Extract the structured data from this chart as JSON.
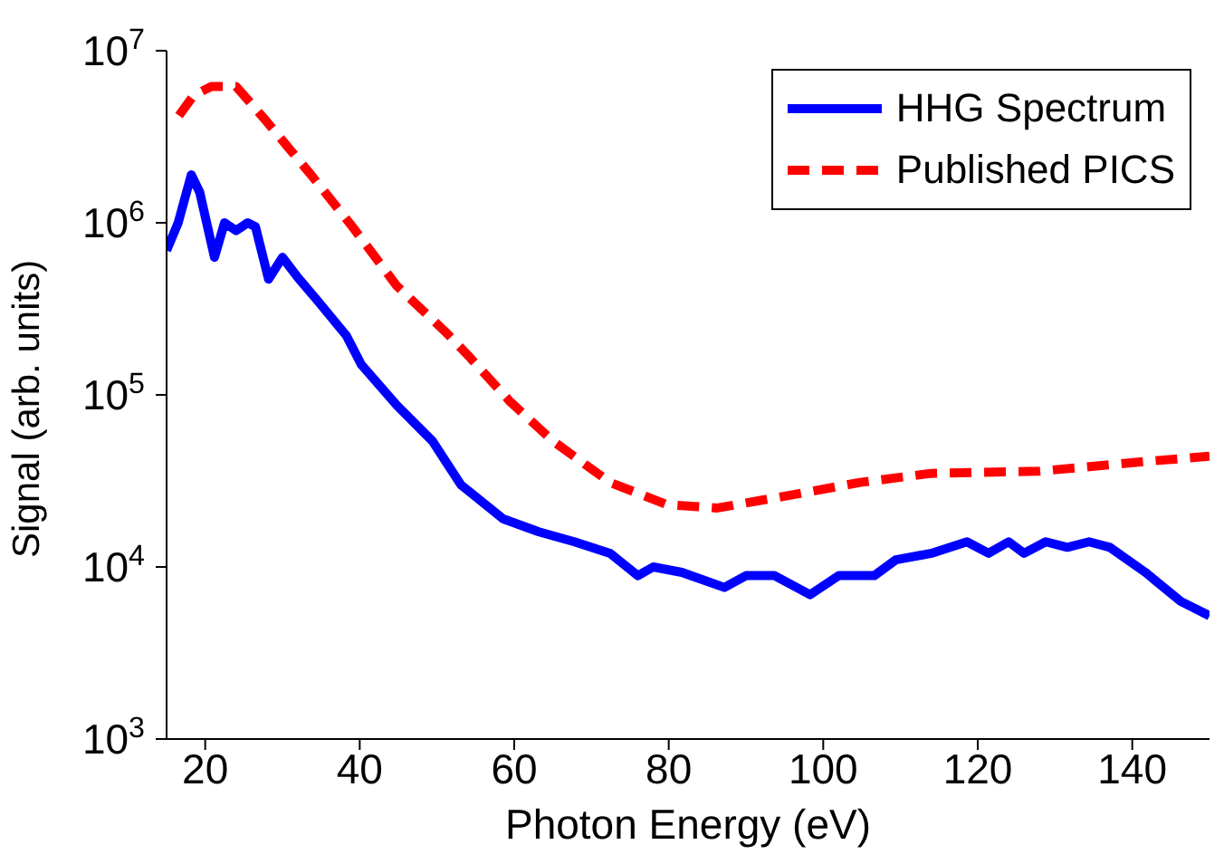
{
  "chart_data": {
    "type": "line",
    "xlabel": "Photon Energy (eV)",
    "ylabel": "Signal (arb. units)",
    "log": "y",
    "legend": "top right",
    "grid": false,
    "xlim": [
      15,
      150
    ],
    "xticks": [
      20,
      40,
      60,
      80,
      100,
      120,
      140
    ],
    "ylim": [
      1000,
      10000000
    ],
    "yticks": [
      {
        "value": 1000,
        "label": "10$^{3}$"
      },
      {
        "value": 10000,
        "label": "10$^{4}$"
      },
      {
        "value": 100000,
        "label": "10$^{5}$"
      },
      {
        "value": 1000000,
        "label": "10$^{6}$"
      },
      {
        "value": 10000000,
        "label": "10$^{7}$"
      }
    ],
    "series": [
      {
        "name": "HHG Spectrum",
        "color": "#0000ff",
        "line_style": "solid",
        "x": [
          15,
          16.5,
          18.2,
          19.3,
          21.2,
          22.5,
          24,
          25.5,
          26.5,
          28.2,
          30,
          32,
          34.6,
          38.3,
          40.2,
          44.8,
          49.4,
          53.1,
          58.6,
          63.2,
          67.8,
          72.4,
          76,
          78,
          81.7,
          87.2,
          90,
          93.7,
          98.3,
          102,
          106.6,
          109.4,
          114,
          118.6,
          121.4,
          124,
          126,
          128.8,
          131.6,
          134.4,
          137.1,
          141.7,
          146.3,
          150
        ],
        "values": [
          690000,
          1000000,
          1900000,
          1500000,
          630000,
          1000000,
          900000,
          1000000,
          950000,
          470000,
          630000,
          480000,
          350000,
          220000,
          150000,
          87000,
          54000,
          30000,
          19000,
          16000,
          14000,
          12000,
          8900,
          10000,
          9300,
          7600,
          8900,
          8900,
          6900,
          8900,
          8900,
          11000,
          12000,
          14000,
          12000,
          14000,
          12000,
          14000,
          13000,
          14000,
          13000,
          9300,
          6300,
          5200
        ]
      },
      {
        "name": "Published PICS",
        "color": "#ff0000",
        "line_style": "dashed",
        "x": [
          16.6,
          18.5,
          20.8,
          24,
          27.7,
          33.7,
          39.2,
          44.8,
          51.2,
          54,
          59.5,
          65,
          72.4,
          79.8,
          86.3,
          95.5,
          104.8,
          114,
          127.9,
          141.7,
          150
        ],
        "values": [
          4200000,
          5500000,
          6200000,
          6200000,
          4000000,
          1900000,
          930000,
          430000,
          230000,
          170000,
          91000,
          54000,
          31000,
          23000,
          22000,
          26000,
          31000,
          35000,
          36000,
          41000,
          44000
        ]
      }
    ]
  }
}
